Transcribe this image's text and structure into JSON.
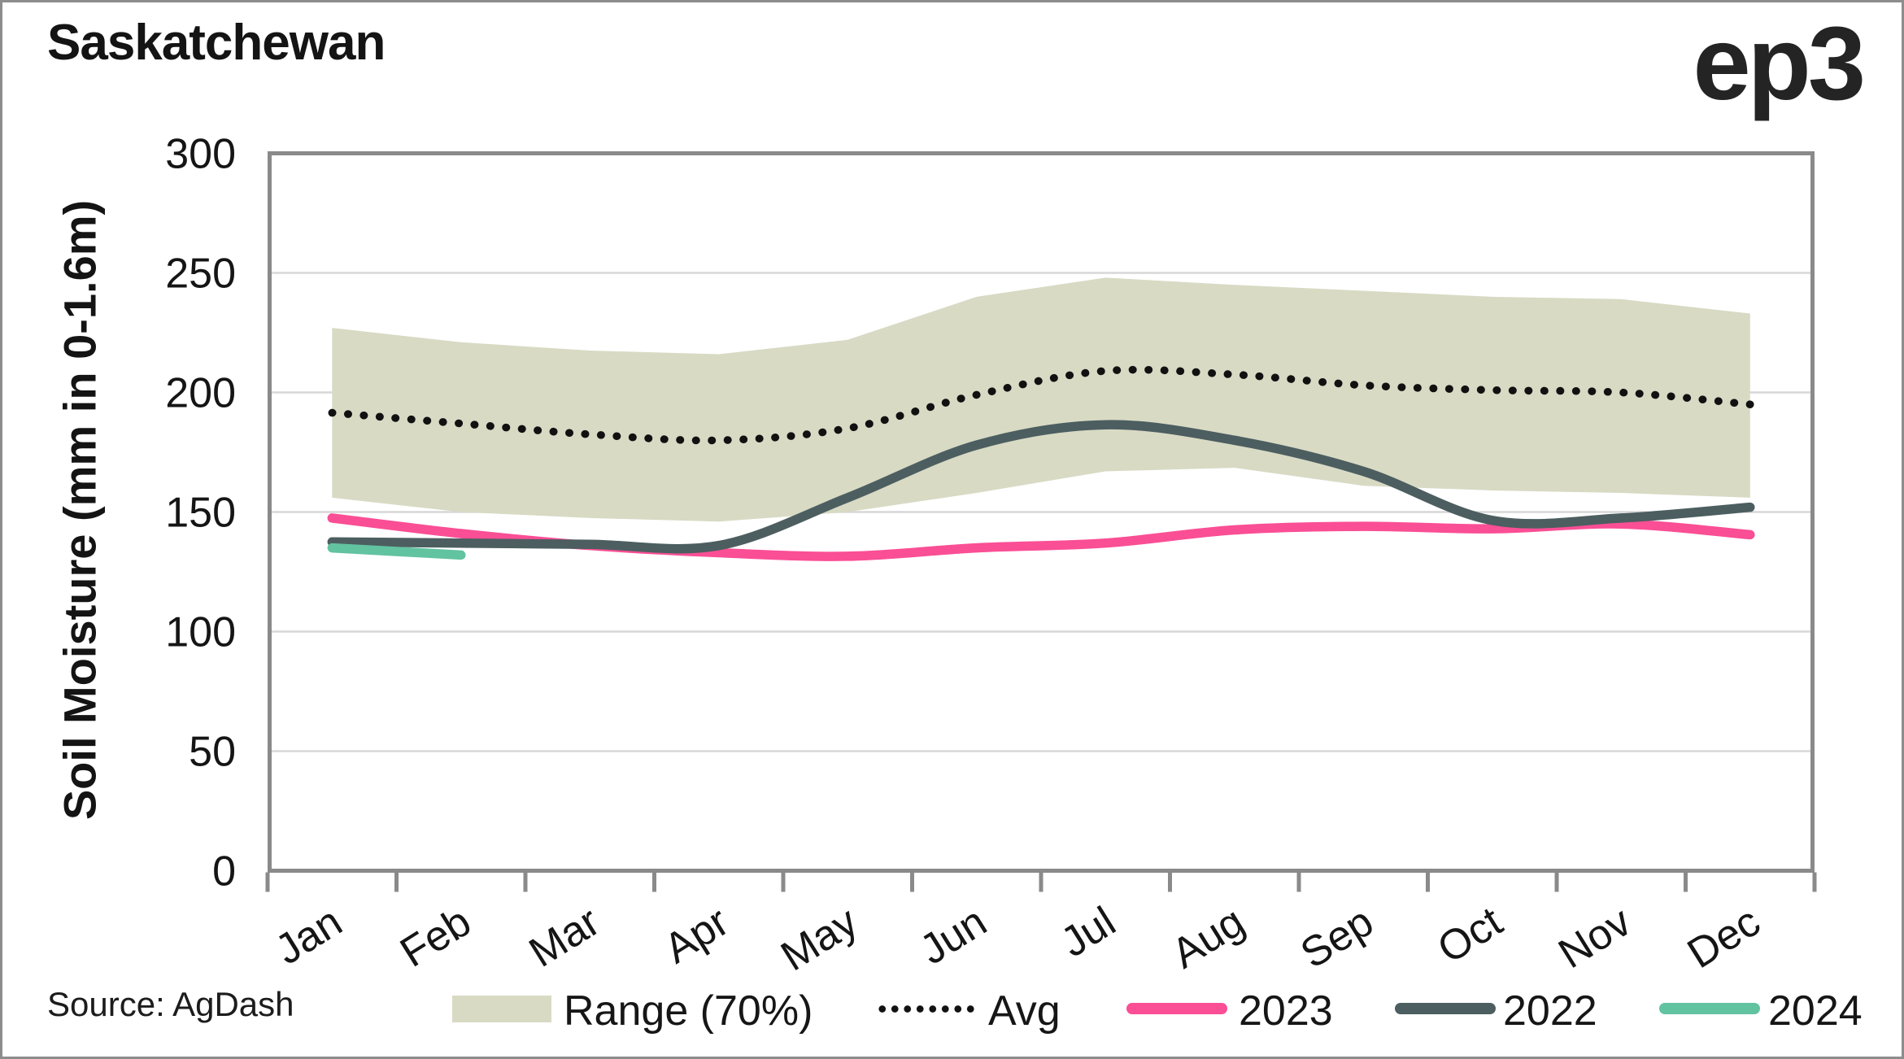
{
  "title": "Saskatchewan",
  "logo": "ep3",
  "source": "Source: AgDash",
  "chart_data": {
    "type": "line",
    "title": "Saskatchewan",
    "xlabel": "",
    "ylabel": "Soil Moisture (mm in 0-1.6m)",
    "x_categories": [
      "Jan",
      "Feb",
      "Mar",
      "Apr",
      "May",
      "Jun",
      "Jul",
      "Aug",
      "Sep",
      "Oct",
      "Nov",
      "Dec"
    ],
    "ylim": [
      0,
      300
    ],
    "yticks": [
      0,
      50,
      100,
      150,
      200,
      250,
      300
    ],
    "grid": "horizontal",
    "legend_position": "bottom",
    "series": [
      {
        "name": "Range (70%)",
        "type": "band",
        "color": "#d8dac4",
        "upper": [
          227,
          221,
          217.5,
          216,
          222,
          240,
          248,
          245,
          242.5,
          240,
          239,
          233
        ],
        "lower": [
          156,
          150,
          147.5,
          146,
          150,
          158,
          167,
          168.5,
          161,
          159,
          158,
          156
        ]
      },
      {
        "name": "Avg",
        "type": "dotted",
        "color": "#111111",
        "values": [
          191.5,
          187,
          182.5,
          180,
          185,
          199,
          209,
          207.5,
          203,
          201,
          200,
          195
        ]
      },
      {
        "name": "2023",
        "type": "line",
        "color": "#fa4e95",
        "values": [
          147.5,
          141,
          136,
          133,
          131.5,
          135,
          137,
          142.5,
          144,
          143,
          145,
          140.5
        ]
      },
      {
        "name": "2022",
        "type": "line",
        "color": "#4c5e60",
        "values": [
          137.5,
          137,
          136.5,
          136,
          156,
          178,
          186.5,
          180,
          167,
          146.5,
          147.5,
          152
        ]
      },
      {
        "name": "2024",
        "type": "line",
        "color": "#62c3a1",
        "values": [
          135,
          132
        ]
      }
    ]
  },
  "legend": {
    "items": [
      {
        "label": "Range (70%)",
        "swatch": "band",
        "color": "#d8dac4"
      },
      {
        "label": "Avg",
        "swatch": "dotted",
        "color": "#111111"
      },
      {
        "label": "2023",
        "swatch": "line",
        "color": "#fa4e95"
      },
      {
        "label": "2022",
        "swatch": "line",
        "color": "#4c5e60"
      },
      {
        "label": "2024",
        "swatch": "line",
        "color": "#62c3a1"
      }
    ]
  }
}
